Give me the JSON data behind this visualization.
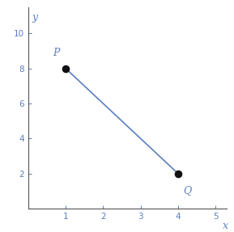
{
  "point_P": [
    1,
    8
  ],
  "point_Q": [
    4,
    2
  ],
  "line_color": "#5B7FBF",
  "point_color": "#111111",
  "point_size": 35,
  "label_P": "P",
  "label_Q": "Q",
  "xlabel": "x",
  "ylabel": "y",
  "xlim": [
    0,
    5.3
  ],
  "ylim": [
    0,
    11.5
  ],
  "xticks": [
    1,
    2,
    3,
    4,
    5
  ],
  "yticks": [
    2,
    4,
    6,
    8,
    10
  ],
  "label_color": "#5B7FBF",
  "label_fontsize": 9,
  "axis_label_fontsize": 9,
  "tick_fontsize": 7.5,
  "spine_color": "#555555"
}
